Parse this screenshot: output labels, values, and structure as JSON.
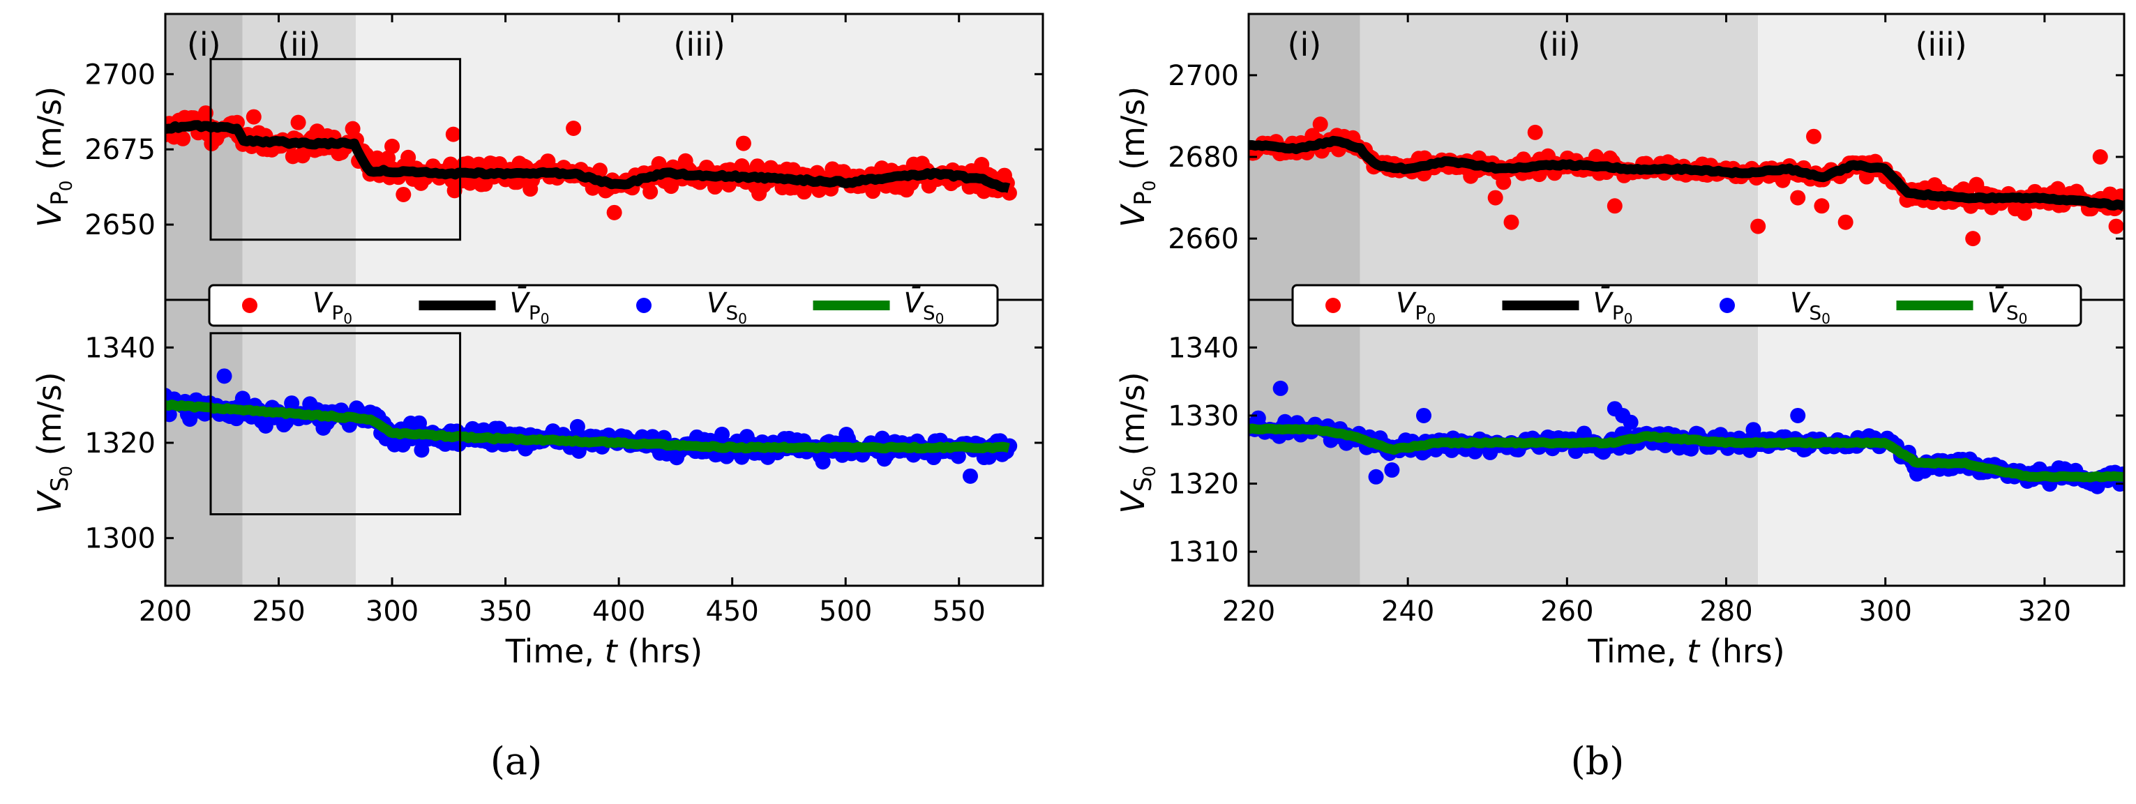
{
  "colors": {
    "vp_points": "#ff0000",
    "vp_mean": "#000000",
    "vs_points": "#0000ff",
    "vs_mean": "#008000",
    "phase_i": "#c0c0c0",
    "phase_ii": "#d9d9d9",
    "phase_iii": "#efefef"
  },
  "chart_data": [
    {
      "id": "a",
      "type": "scatter",
      "caption": "(a)",
      "xlabel": "Time, t (hrs)",
      "xlim": [
        200,
        587
      ],
      "xticks": [
        200,
        250,
        300,
        350,
        400,
        450,
        500,
        550
      ],
      "phases": [
        {
          "label": "(i)",
          "x0": 200,
          "x1": 234
        },
        {
          "label": "(ii)",
          "x0": 234,
          "x1": 284
        },
        {
          "label": "(iii)",
          "x0": 284,
          "x1": 587
        }
      ],
      "zoom_box_x": [
        220,
        330
      ],
      "legend": [
        "V_P0",
        "V̄_P0",
        "V_S0",
        "V̄_S0"
      ],
      "top": {
        "ylabel": "V_P0 (m/s)",
        "ylim": [
          2625,
          2720
        ],
        "yticks": [
          2650,
          2675,
          2700
        ],
        "zoom_box_y": [
          2645,
          2705
        ],
        "mean_knots": [
          [
            200,
            2682
          ],
          [
            212,
            2683
          ],
          [
            232,
            2682
          ],
          [
            234,
            2678
          ],
          [
            260,
            2677
          ],
          [
            283,
            2677
          ],
          [
            290,
            2668
          ],
          [
            320,
            2667
          ],
          [
            380,
            2667
          ],
          [
            400,
            2663
          ],
          [
            420,
            2667
          ],
          [
            450,
            2666
          ],
          [
            500,
            2664
          ],
          [
            540,
            2667
          ],
          [
            560,
            2665
          ],
          [
            572,
            2662
          ]
        ],
        "outliers": [
          [
            305,
            2660
          ],
          [
            380,
            2682
          ],
          [
            398,
            2654
          ],
          [
            455,
            2677
          ],
          [
            300,
            2676
          ],
          [
            327,
            2680
          ]
        ],
        "noise": 5,
        "n_points": 380,
        "t_range": [
          200,
          572
        ],
        "series_name": "V_P0"
      },
      "bottom": {
        "ylabel": "V_S0 (m/s)",
        "ylim": [
          1290,
          1350
        ],
        "yticks": [
          1300,
          1320,
          1340
        ],
        "zoom_box_y": [
          1305,
          1343
        ],
        "mean_knots": [
          [
            200,
            1328
          ],
          [
            230,
            1327
          ],
          [
            260,
            1326
          ],
          [
            290,
            1325
          ],
          [
            300,
            1322
          ],
          [
            340,
            1321
          ],
          [
            400,
            1320
          ],
          [
            450,
            1319
          ],
          [
            500,
            1319
          ],
          [
            572,
            1319
          ]
        ],
        "outliers": [
          [
            226,
            1334
          ],
          [
            555,
            1313
          ],
          [
            490,
            1316
          ]
        ],
        "noise": 2.5,
        "n_points": 380,
        "t_range": [
          200,
          572
        ],
        "series_name": "V_S0"
      }
    },
    {
      "id": "b",
      "type": "scatter",
      "caption": "(b)",
      "xlabel": "Time, t (hrs)",
      "xlim": [
        220,
        330
      ],
      "xticks": [
        220,
        240,
        260,
        280,
        300,
        320
      ],
      "phases": [
        {
          "label": "(i)",
          "x0": 220,
          "x1": 234
        },
        {
          "label": "(ii)",
          "x0": 234,
          "x1": 284
        },
        {
          "label": "(iii)",
          "x0": 284,
          "x1": 330
        }
      ],
      "legend": [
        "V_P0",
        "V̄_P0",
        "V_S0",
        "V̄_S0"
      ],
      "top": {
        "ylabel": "V_P0 (m/s)",
        "ylim": [
          2645,
          2715
        ],
        "yticks": [
          2660,
          2680,
          2700
        ],
        "mean_knots": [
          [
            220,
            2683
          ],
          [
            226,
            2682
          ],
          [
            231,
            2684
          ],
          [
            234,
            2682
          ],
          [
            236,
            2678
          ],
          [
            240,
            2677
          ],
          [
            245,
            2679
          ],
          [
            252,
            2677
          ],
          [
            258,
            2678
          ],
          [
            262,
            2678
          ],
          [
            268,
            2677
          ],
          [
            275,
            2677
          ],
          [
            282,
            2676
          ],
          [
            288,
            2677
          ],
          [
            292,
            2675
          ],
          [
            296,
            2678
          ],
          [
            300,
            2677
          ],
          [
            303,
            2671
          ],
          [
            310,
            2670
          ],
          [
            320,
            2670
          ],
          [
            330,
            2668
          ]
        ],
        "outliers": [
          [
            229,
            2688
          ],
          [
            251,
            2670
          ],
          [
            253,
            2664
          ],
          [
            256,
            2686
          ],
          [
            266,
            2668
          ],
          [
            284,
            2663
          ],
          [
            289,
            2670
          ],
          [
            291,
            2685
          ],
          [
            292,
            2668
          ],
          [
            295,
            2664
          ],
          [
            311,
            2660
          ],
          [
            327,
            2680
          ],
          [
            329,
            2663
          ]
        ],
        "noise": 2.5,
        "n_points": 340,
        "t_range": [
          220,
          330
        ],
        "series_name": "V_P0"
      },
      "bottom": {
        "ylabel": "V_S0 (m/s)",
        "ylim": [
          1305,
          1347
        ],
        "yticks": [
          1310,
          1320,
          1330,
          1340
        ],
        "mean_knots": [
          [
            220,
            1328
          ],
          [
            228,
            1328
          ],
          [
            233,
            1327
          ],
          [
            238,
            1325
          ],
          [
            244,
            1326
          ],
          [
            256,
            1326
          ],
          [
            266,
            1326
          ],
          [
            270,
            1327
          ],
          [
            280,
            1326
          ],
          [
            290,
            1326
          ],
          [
            300,
            1326
          ],
          [
            304,
            1323
          ],
          [
            310,
            1323
          ],
          [
            314,
            1322
          ],
          [
            318,
            1321
          ],
          [
            330,
            1321
          ]
        ],
        "outliers": [
          [
            224,
            1334
          ],
          [
            236,
            1321
          ],
          [
            238,
            1322
          ],
          [
            242,
            1330
          ],
          [
            266,
            1331
          ],
          [
            267,
            1330
          ],
          [
            268,
            1329
          ],
          [
            289,
            1330
          ]
        ],
        "noise": 1.3,
        "n_points": 340,
        "t_range": [
          220,
          330
        ],
        "series_name": "V_S0"
      }
    }
  ]
}
